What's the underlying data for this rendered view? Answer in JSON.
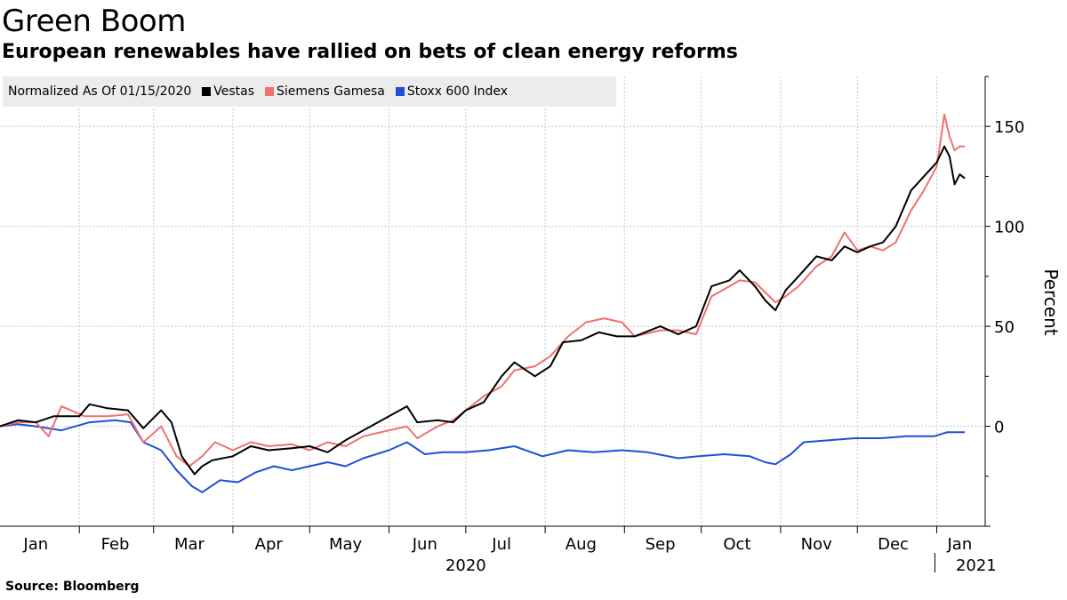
{
  "header": {
    "title": "Green Boom",
    "subtitle": "European renewables have rallied on bets of clean energy reforms"
  },
  "legend": {
    "title": "Normalized As Of 01/15/2020"
  },
  "source": "Source: Bloomberg",
  "chart_data": {
    "type": "line",
    "title": "Green Boom",
    "subtitle": "European renewables have rallied on bets of clean energy reforms",
    "ylabel": "Percent",
    "ylim": [
      -50,
      175
    ],
    "yticks": [
      0,
      50,
      100,
      150
    ],
    "xlim": [
      "2020-01-01",
      "2021-01-13"
    ],
    "month_labels": [
      "Jan",
      "Feb",
      "Mar",
      "Apr",
      "May",
      "Jun",
      "Jul",
      "Aug",
      "Sep",
      "Oct",
      "Nov",
      "Dec",
      "Jan"
    ],
    "month_dates": [
      "2020-01-15",
      "2020-02-15",
      "2020-03-15",
      "2020-04-15",
      "2020-05-15",
      "2020-06-15",
      "2020-07-15",
      "2020-08-15",
      "2020-09-15",
      "2020-10-15",
      "2020-11-15",
      "2020-12-15",
      "2021-01-10"
    ],
    "year_labels": [
      {
        "label": "2020",
        "date": "2020-07-01"
      },
      {
        "label": "2021",
        "date": "2021-01-06"
      }
    ],
    "grid": true,
    "legend_placement": "top-left",
    "series": [
      {
        "name": "Vestas",
        "color": "#000000",
        "points": [
          [
            "2020-01-01",
            0
          ],
          [
            "2020-01-08",
            3
          ],
          [
            "2020-01-15",
            2
          ],
          [
            "2020-01-22",
            5
          ],
          [
            "2020-02-01",
            5
          ],
          [
            "2020-02-05",
            11
          ],
          [
            "2020-02-12",
            9
          ],
          [
            "2020-02-20",
            8
          ],
          [
            "2020-02-26",
            -1
          ],
          [
            "2020-03-04",
            8
          ],
          [
            "2020-03-08",
            2
          ],
          [
            "2020-03-12",
            -15
          ],
          [
            "2020-03-17",
            -24
          ],
          [
            "2020-03-20",
            -20
          ],
          [
            "2020-03-24",
            -17
          ],
          [
            "2020-04-01",
            -15
          ],
          [
            "2020-04-08",
            -10
          ],
          [
            "2020-04-15",
            -12
          ],
          [
            "2020-04-24",
            -11
          ],
          [
            "2020-05-01",
            -10
          ],
          [
            "2020-05-08",
            -13
          ],
          [
            "2020-05-15",
            -7
          ],
          [
            "2020-05-22",
            -2
          ],
          [
            "2020-06-01",
            5
          ],
          [
            "2020-06-08",
            10
          ],
          [
            "2020-06-12",
            2
          ],
          [
            "2020-06-20",
            3
          ],
          [
            "2020-06-26",
            2
          ],
          [
            "2020-07-01",
            8
          ],
          [
            "2020-07-08",
            12
          ],
          [
            "2020-07-15",
            25
          ],
          [
            "2020-07-20",
            32
          ],
          [
            "2020-07-28",
            25
          ],
          [
            "2020-08-03",
            30
          ],
          [
            "2020-08-08",
            42
          ],
          [
            "2020-08-15",
            43
          ],
          [
            "2020-08-22",
            47
          ],
          [
            "2020-08-29",
            45
          ],
          [
            "2020-09-05",
            45
          ],
          [
            "2020-09-15",
            50
          ],
          [
            "2020-09-22",
            46
          ],
          [
            "2020-09-29",
            50
          ],
          [
            "2020-10-05",
            70
          ],
          [
            "2020-10-12",
            73
          ],
          [
            "2020-10-16",
            78
          ],
          [
            "2020-10-22",
            70
          ],
          [
            "2020-10-26",
            63
          ],
          [
            "2020-10-30",
            58
          ],
          [
            "2020-11-03",
            68
          ],
          [
            "2020-11-08",
            75
          ],
          [
            "2020-11-15",
            85
          ],
          [
            "2020-11-21",
            83
          ],
          [
            "2020-11-26",
            90
          ],
          [
            "2020-12-01",
            87
          ],
          [
            "2020-12-06",
            90
          ],
          [
            "2020-12-11",
            92
          ],
          [
            "2020-12-16",
            100
          ],
          [
            "2020-12-22",
            118
          ],
          [
            "2020-12-27",
            125
          ],
          [
            "2021-01-01",
            132
          ],
          [
            "2021-01-04",
            140
          ],
          [
            "2021-01-06",
            135
          ],
          [
            "2021-01-08",
            121
          ],
          [
            "2021-01-10",
            126
          ],
          [
            "2021-01-12",
            124
          ]
        ]
      },
      {
        "name": "Siemens Gamesa",
        "color": "#f07070",
        "points": [
          [
            "2020-01-01",
            0
          ],
          [
            "2020-01-08",
            2
          ],
          [
            "2020-01-15",
            2
          ],
          [
            "2020-01-20",
            -5
          ],
          [
            "2020-01-25",
            10
          ],
          [
            "2020-02-03",
            5
          ],
          [
            "2020-02-12",
            5
          ],
          [
            "2020-02-20",
            6
          ],
          [
            "2020-02-26",
            -8
          ],
          [
            "2020-03-04",
            0
          ],
          [
            "2020-03-10",
            -15
          ],
          [
            "2020-03-15",
            -20
          ],
          [
            "2020-03-20",
            -15
          ],
          [
            "2020-03-25",
            -8
          ],
          [
            "2020-04-01",
            -12
          ],
          [
            "2020-04-08",
            -8
          ],
          [
            "2020-04-15",
            -10
          ],
          [
            "2020-04-24",
            -9
          ],
          [
            "2020-05-01",
            -12
          ],
          [
            "2020-05-08",
            -8
          ],
          [
            "2020-05-15",
            -10
          ],
          [
            "2020-05-22",
            -5
          ],
          [
            "2020-06-01",
            -2
          ],
          [
            "2020-06-08",
            0
          ],
          [
            "2020-06-12",
            -6
          ],
          [
            "2020-06-20",
            0
          ],
          [
            "2020-06-26",
            3
          ],
          [
            "2020-07-01",
            8
          ],
          [
            "2020-07-08",
            15
          ],
          [
            "2020-07-15",
            20
          ],
          [
            "2020-07-20",
            28
          ],
          [
            "2020-07-28",
            30
          ],
          [
            "2020-08-03",
            35
          ],
          [
            "2020-08-10",
            45
          ],
          [
            "2020-08-17",
            52
          ],
          [
            "2020-08-24",
            54
          ],
          [
            "2020-08-31",
            52
          ],
          [
            "2020-09-05",
            45
          ],
          [
            "2020-09-15",
            48
          ],
          [
            "2020-09-22",
            48
          ],
          [
            "2020-09-29",
            46
          ],
          [
            "2020-10-05",
            65
          ],
          [
            "2020-10-12",
            70
          ],
          [
            "2020-10-16",
            73
          ],
          [
            "2020-10-22",
            72
          ],
          [
            "2020-10-26",
            67
          ],
          [
            "2020-10-30",
            62
          ],
          [
            "2020-11-03",
            65
          ],
          [
            "2020-11-08",
            70
          ],
          [
            "2020-11-15",
            80
          ],
          [
            "2020-11-21",
            85
          ],
          [
            "2020-11-26",
            97
          ],
          [
            "2020-12-01",
            88
          ],
          [
            "2020-12-06",
            90
          ],
          [
            "2020-12-11",
            88
          ],
          [
            "2020-12-16",
            92
          ],
          [
            "2020-12-22",
            108
          ],
          [
            "2020-12-27",
            118
          ],
          [
            "2021-01-01",
            130
          ],
          [
            "2021-01-04",
            156
          ],
          [
            "2021-01-06",
            145
          ],
          [
            "2021-01-08",
            138
          ],
          [
            "2021-01-10",
            140
          ],
          [
            "2021-01-12",
            140
          ]
        ]
      },
      {
        "name": "Stoxx 600 Index",
        "color": "#1e4fd6",
        "points": [
          [
            "2020-01-01",
            0
          ],
          [
            "2020-01-08",
            1
          ],
          [
            "2020-01-15",
            0
          ],
          [
            "2020-01-25",
            -2
          ],
          [
            "2020-02-05",
            2
          ],
          [
            "2020-02-15",
            3
          ],
          [
            "2020-02-21",
            2
          ],
          [
            "2020-02-26",
            -8
          ],
          [
            "2020-03-04",
            -12
          ],
          [
            "2020-03-10",
            -22
          ],
          [
            "2020-03-16",
            -30
          ],
          [
            "2020-03-20",
            -33
          ],
          [
            "2020-03-27",
            -27
          ],
          [
            "2020-04-03",
            -28
          ],
          [
            "2020-04-10",
            -23
          ],
          [
            "2020-04-17",
            -20
          ],
          [
            "2020-04-24",
            -22
          ],
          [
            "2020-05-01",
            -20
          ],
          [
            "2020-05-08",
            -18
          ],
          [
            "2020-05-15",
            -20
          ],
          [
            "2020-05-22",
            -16
          ],
          [
            "2020-06-01",
            -12
          ],
          [
            "2020-06-08",
            -8
          ],
          [
            "2020-06-15",
            -14
          ],
          [
            "2020-06-22",
            -13
          ],
          [
            "2020-07-01",
            -13
          ],
          [
            "2020-07-10",
            -12
          ],
          [
            "2020-07-20",
            -10
          ],
          [
            "2020-07-31",
            -15
          ],
          [
            "2020-08-10",
            -12
          ],
          [
            "2020-08-20",
            -13
          ],
          [
            "2020-08-31",
            -12
          ],
          [
            "2020-09-10",
            -13
          ],
          [
            "2020-09-22",
            -16
          ],
          [
            "2020-09-30",
            -15
          ],
          [
            "2020-10-10",
            -14
          ],
          [
            "2020-10-20",
            -15
          ],
          [
            "2020-10-26",
            -18
          ],
          [
            "2020-10-30",
            -19
          ],
          [
            "2020-11-05",
            -14
          ],
          [
            "2020-11-10",
            -8
          ],
          [
            "2020-11-20",
            -7
          ],
          [
            "2020-11-30",
            -6
          ],
          [
            "2020-12-10",
            -6
          ],
          [
            "2020-12-20",
            -5
          ],
          [
            "2020-12-31",
            -5
          ],
          [
            "2021-01-05",
            -3
          ],
          [
            "2021-01-12",
            -3
          ]
        ]
      }
    ]
  }
}
